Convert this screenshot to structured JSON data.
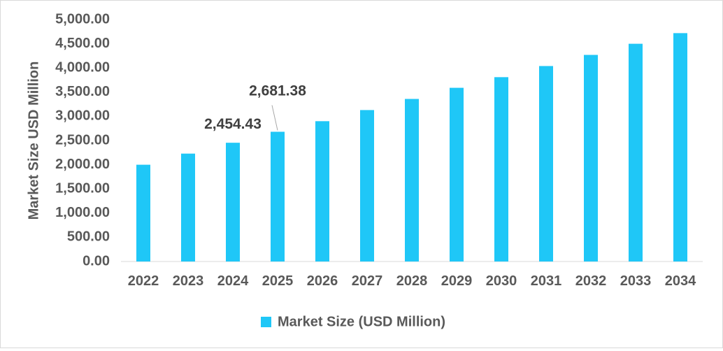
{
  "chart_data": {
    "type": "bar",
    "title": "",
    "xlabel": "",
    "ylabel": "Market Size USD Million",
    "ylim": [
      0,
      5000
    ],
    "ytick_step": 500,
    "ytick_labels": [
      "0.00",
      "500.00",
      "1,000.00",
      "1,500.00",
      "2,000.00",
      "2,500.00",
      "3,000.00",
      "3,500.00",
      "4,000.00",
      "4,500.00",
      "5,000.00"
    ],
    "categories": [
      "2022",
      "2023",
      "2024",
      "2025",
      "2026",
      "2027",
      "2028",
      "2029",
      "2030",
      "2031",
      "2032",
      "2033",
      "2034"
    ],
    "series": [
      {
        "name": "Market Size (USD Million)",
        "color": "#1FC7F7",
        "values": [
          2000,
          2230,
          2454.43,
          2681.38,
          2900,
          3130,
          3360,
          3590,
          3810,
          4040,
          4270,
          4500,
          4720
        ]
      }
    ],
    "data_labels": [
      {
        "category": "2024",
        "text": "2,454.43"
      },
      {
        "category": "2025",
        "text": "2,681.38",
        "leader_line": true
      }
    ],
    "grid": false,
    "legend_position": "bottom"
  }
}
